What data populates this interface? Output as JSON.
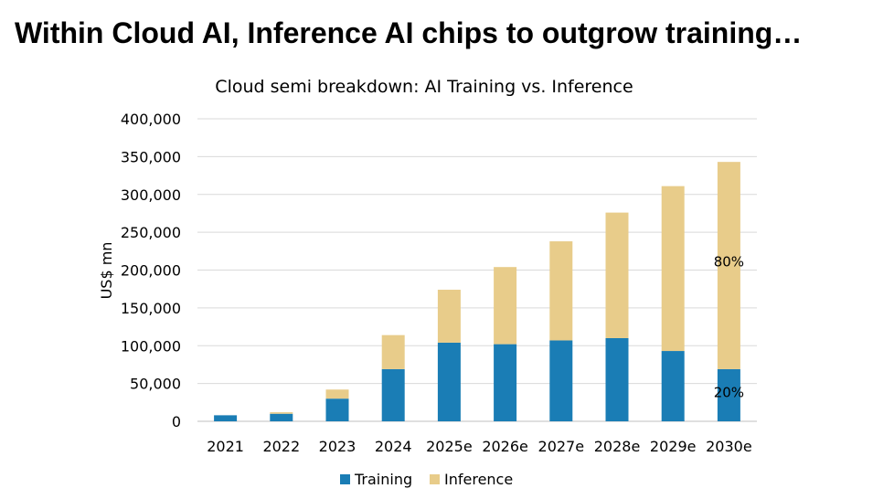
{
  "headline": "Within Cloud AI, Inference AI chips to outgrow training…",
  "chart_data": {
    "type": "bar",
    "stacked": true,
    "title": "Cloud semi breakdown: AI Training vs. Inference",
    "xlabel": "",
    "ylabel": "US$ mn",
    "ylim": [
      0,
      400000
    ],
    "yticks": [
      0,
      50000,
      100000,
      150000,
      200000,
      250000,
      300000,
      350000,
      400000
    ],
    "ytick_labels": [
      "0",
      "50,000",
      "100,000",
      "150,000",
      "200,000",
      "250,000",
      "300,000",
      "350,000",
      "400,000"
    ],
    "categories": [
      "2021",
      "2022",
      "2023",
      "2024",
      "2025e",
      "2026e",
      "2027e",
      "2028e",
      "2029e",
      "2030e"
    ],
    "series": [
      {
        "name": "Training",
        "color": "#1a7db5",
        "values": [
          8000,
          10000,
          30000,
          69000,
          104000,
          102000,
          107000,
          110000,
          93000,
          69000
        ]
      },
      {
        "name": "Inference",
        "color": "#e8cc8a",
        "values": [
          0,
          2000,
          12000,
          45000,
          70000,
          102000,
          131000,
          166000,
          218000,
          274000
        ]
      }
    ],
    "annotations": [
      {
        "text": "80%",
        "category": "2030e",
        "y": 205000
      },
      {
        "text": "20%",
        "category": "2030e",
        "y": 32000
      }
    ],
    "grid": true,
    "legend": "bottom-center"
  }
}
